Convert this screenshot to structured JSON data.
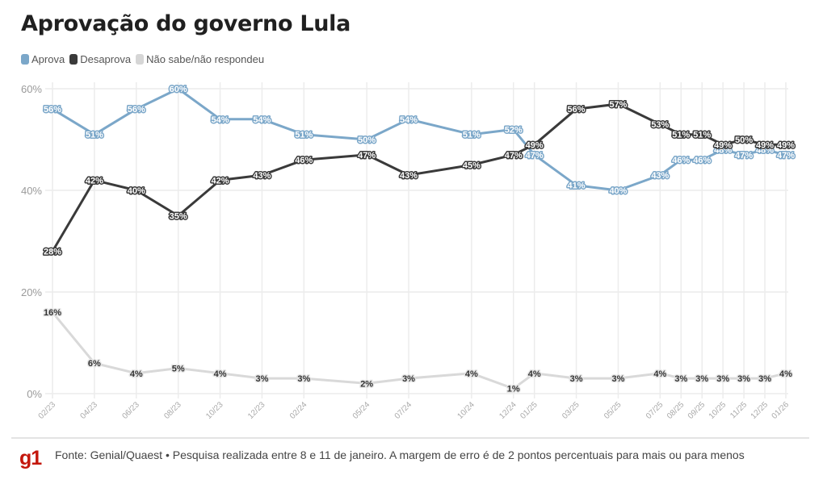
{
  "header": {
    "title": "Aprovação do governo Lula"
  },
  "legend": [
    {
      "label": "Aprova",
      "color": "#7ba7c9"
    },
    {
      "label": "Desaprova",
      "color": "#3a3a3a"
    },
    {
      "label": "Não sabe/não respondeu",
      "color": "#d6d6d6"
    }
  ],
  "footer": {
    "logo": "g1",
    "source": "Fonte: Genial/Quaest • Pesquisa realizada entre 8 e 11 de janeiro. A margem de erro é de 2 pontos percentuais para mais ou para menos"
  },
  "chart_data": {
    "type": "line",
    "title": "Aprovação do governo Lula",
    "xlabel": "",
    "ylabel": "",
    "ylim": [
      0,
      60
    ],
    "yticks": [
      0,
      20,
      40,
      60
    ],
    "ytick_labels": [
      "0%",
      "20%",
      "40%",
      "60%"
    ],
    "grid": true,
    "legend_position": "top-left",
    "categories": [
      "02/23",
      "04/23",
      "06/23",
      "08/23",
      "10/23",
      "12/23",
      "02/24",
      "05/24",
      "07/24",
      "10/24",
      "12/24",
      "01/25",
      "03/25",
      "05/25",
      "07/25",
      "08/25",
      "09/25",
      "10/25",
      "11/25",
      "12/25",
      "01/26"
    ],
    "month_index": [
      0,
      2,
      4,
      6,
      8,
      10,
      12,
      15,
      17,
      20,
      22,
      23,
      25,
      27,
      29,
      30,
      31,
      32,
      33,
      34,
      35
    ],
    "series": [
      {
        "name": "Aprova",
        "color": "#7ba7c9",
        "label_stroke": "#7ba7c9",
        "label_fill": "#ffffff",
        "values": [
          56,
          51,
          56,
          60,
          54,
          54,
          51,
          50,
          54,
          51,
          52,
          47,
          41,
          40,
          43,
          46,
          46,
          48,
          47,
          48,
          47
        ]
      },
      {
        "name": "Desaprova",
        "color": "#3a3a3a",
        "label_stroke": "#3a3a3a",
        "label_fill": "#ffffff",
        "values": [
          28,
          42,
          40,
          35,
          42,
          43,
          46,
          47,
          43,
          45,
          47,
          49,
          56,
          57,
          53,
          51,
          51,
          49,
          50,
          49,
          49
        ]
      },
      {
        "name": "Não sabe/não respondeu",
        "color": "#d9d9d9",
        "label_stroke": "#e6e6e6",
        "label_fill": "#333333",
        "values": [
          16,
          6,
          4,
          5,
          4,
          3,
          3,
          2,
          3,
          4,
          1,
          4,
          3,
          3,
          4,
          3,
          3,
          3,
          3,
          3,
          4
        ]
      }
    ],
    "value_suffix": "%"
  }
}
